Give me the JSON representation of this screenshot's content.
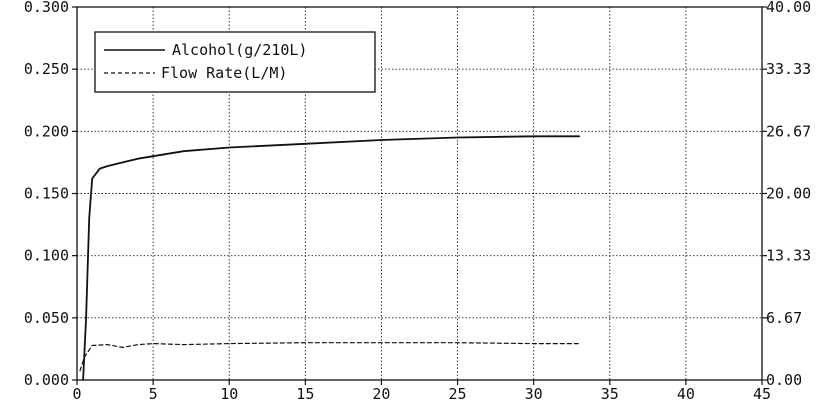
{
  "chart_data": {
    "type": "line",
    "title": "",
    "xlabel": "",
    "ylabel": "",
    "y2label": "",
    "xlim": [
      0,
      45
    ],
    "ylim": [
      0,
      0.3
    ],
    "y2lim": [
      0,
      40
    ],
    "grid": true,
    "legend_position": "top-left",
    "x_ticks": [
      "0",
      "5",
      "10",
      "15",
      "20",
      "25",
      "30",
      "35",
      "40",
      "45"
    ],
    "y_ticks": [
      "0.000",
      "0.050",
      "0.100",
      "0.150",
      "0.200",
      "0.250",
      "0.300"
    ],
    "y2_ticks": [
      "0.00",
      "6.67",
      "13.33",
      "20.00",
      "26.67",
      "33.33",
      "40.00"
    ],
    "series": [
      {
        "name": "Alcohol(g/210L)",
        "axis": "left",
        "style": "solid",
        "color": "#111111",
        "x": [
          0.4,
          0.6,
          0.8,
          1.0,
          1.5,
          2,
          3,
          4,
          5,
          7,
          10,
          15,
          20,
          25,
          30,
          33
        ],
        "y": [
          0.0,
          0.05,
          0.13,
          0.162,
          0.17,
          0.172,
          0.175,
          0.178,
          0.18,
          0.184,
          0.187,
          0.19,
          0.193,
          0.195,
          0.196,
          0.196
        ]
      },
      {
        "name": "Flow Rate(L/M)",
        "axis": "right",
        "style": "dashed",
        "color": "#111111",
        "x": [
          0.2,
          0.5,
          1.0,
          2,
          3,
          4,
          5,
          7,
          10,
          15,
          20,
          25,
          30,
          33
        ],
        "y": [
          1.0,
          2.5,
          3.7,
          3.8,
          3.5,
          3.8,
          3.9,
          3.8,
          3.9,
          4.0,
          4.0,
          4.0,
          3.9,
          3.9
        ]
      }
    ]
  }
}
